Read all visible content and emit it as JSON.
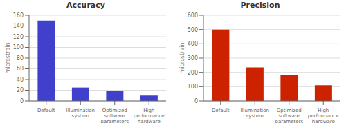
{
  "chart_data": [
    {
      "type": "bar",
      "title": "Accuracy",
      "categories": [
        "Default",
        "Illumination\nsystem",
        "Optimized\nsoftware\nparameters",
        "High\nperformance\nhardware"
      ],
      "values": [
        150,
        25,
        19,
        10
      ],
      "color": "#4040cc",
      "ylabel": "microstrain",
      "ylim": [
        0,
        160
      ],
      "yticks": [
        0,
        20,
        40,
        60,
        80,
        100,
        120,
        140,
        160
      ],
      "grid": true
    },
    {
      "type": "bar",
      "title": "Precision",
      "categories": [
        "Default",
        "Illumination\nsystem",
        "Optimized\nsoftware\nparameters",
        "High\nperformance\nhardware"
      ],
      "values": [
        500,
        235,
        182,
        110
      ],
      "color": "#cc2200",
      "ylabel": "microstrain",
      "ylim": [
        0,
        600
      ],
      "yticks": [
        0,
        100,
        200,
        300,
        400,
        500,
        600
      ],
      "grid": true
    }
  ]
}
